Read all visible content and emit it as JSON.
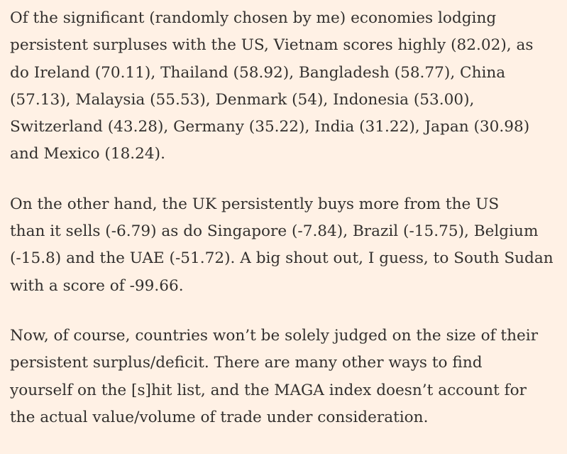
{
  "article": {
    "paragraphs": [
      {
        "lines": [
          "Of the significant (randomly chosen by me) economies lodging",
          "persistent surpluses with the US, Vietnam scores highly (82.02), as",
          "do Ireland (70.11), Thailand (58.92), Bangladesh (58.77), China",
          "(57.13), Malaysia (55.53), Denmark (54), Indonesia (53.00),",
          "Switzerland (43.28), Germany (35.22), India (31.22), Japan (30.98)",
          "and Mexico (18.24)."
        ]
      },
      {
        "lines": [
          "On the other hand, the UK persistently buys more from the US",
          "than it sells (-6.79) as do Singapore (-7.84), Brazil (-15.75), Belgium",
          "(-15.8) and the UAE (-51.72). A big shout out, I guess, to South Sudan",
          "with a score of -99.66."
        ]
      },
      {
        "lines": [
          "Now, of course, countries won’t be solely judged on the size of their",
          "persistent surplus/deficit. There are many other ways to find",
          "yourself on the [s]hit list, and the MAGA index doesn’t account for",
          "the actual value/volume of trade under consideration."
        ]
      }
    ]
  }
}
